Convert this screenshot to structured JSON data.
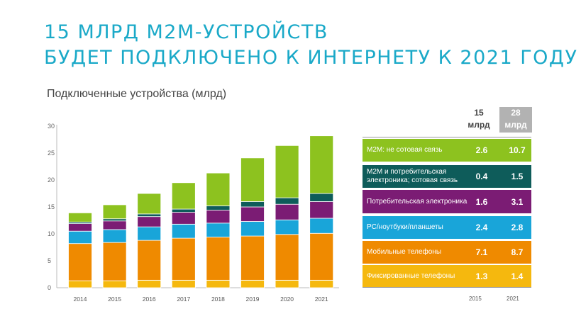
{
  "title_line1": "15 МЛРД М2М-УСТРОЙСТВ",
  "title_line2": "БУДЕТ ПОДКЛЮЧЕНО К ИНТЕРНЕТУ К 2021 ГОДУ",
  "subtitle": "Подключенные устройства (млрд)",
  "table": {
    "header_2015_value": "15",
    "header_2015_unit": "млрд",
    "header_2021_value": "28",
    "header_2021_unit": "млрд",
    "footer_2015": "2015",
    "footer_2021": "2021",
    "rows": [
      {
        "label": "М2М: не сотовая связь",
        "v2015": "2.6",
        "v2021": "10.7",
        "color": "#8dc21f"
      },
      {
        "label": "М2М и потребительская электроника; сотовая связь",
        "v2015": "0.4",
        "v2021": "1.5",
        "color": "#0e5c5a"
      },
      {
        "label": "Потребительская электроника",
        "v2015": "1.6",
        "v2021": "3.1",
        "color": "#7b1c74"
      },
      {
        "label": "PC/ноутбуки/планшеты",
        "v2015": "2.4",
        "v2021": "2.8",
        "color": "#19a5d9"
      },
      {
        "label": "Мобильные телефоны",
        "v2015": "7.1",
        "v2021": "8.7",
        "color": "#ef8a00"
      },
      {
        "label": "Фиксированные телефоны",
        "v2015": "1.3",
        "v2021": "1.4",
        "color": "#f5b80e"
      }
    ]
  },
  "chart_data": {
    "type": "bar",
    "stacked": true,
    "categories": [
      "2014",
      "2015",
      "2016",
      "2017",
      "2018",
      "2019",
      "2020",
      "2021"
    ],
    "y_ticks": [
      "0",
      "5",
      "10",
      "15",
      "20",
      "25",
      "30"
    ],
    "ylim": [
      0,
      30
    ],
    "grid": false,
    "series": [
      {
        "name": "Фиксированные телефоны",
        "color": "#f5b80e",
        "values": [
          1.3,
          1.3,
          1.4,
          1.4,
          1.4,
          1.4,
          1.4,
          1.4
        ]
      },
      {
        "name": "Мобильные телефоны",
        "color": "#ef8a00",
        "values": [
          6.9,
          7.1,
          7.4,
          7.8,
          8.0,
          8.2,
          8.5,
          8.7
        ]
      },
      {
        "name": "PC/ноутбуки/планшеты",
        "color": "#19a5d9",
        "values": [
          2.3,
          2.4,
          2.5,
          2.6,
          2.6,
          2.7,
          2.7,
          2.8
        ]
      },
      {
        "name": "Потребительская электроника",
        "color": "#7b1c74",
        "values": [
          1.4,
          1.6,
          1.9,
          2.2,
          2.4,
          2.7,
          2.9,
          3.1
        ]
      },
      {
        "name": "М2М и потребительская электроника; сотовая связь",
        "color": "#0e5c5a",
        "values": [
          0.3,
          0.4,
          0.5,
          0.6,
          0.8,
          1.0,
          1.2,
          1.5
        ]
      },
      {
        "name": "М2М: не сотовая связь",
        "color": "#8dc21f",
        "values": [
          1.7,
          2.6,
          3.8,
          4.9,
          6.1,
          8.1,
          9.7,
          10.7
        ]
      }
    ]
  }
}
